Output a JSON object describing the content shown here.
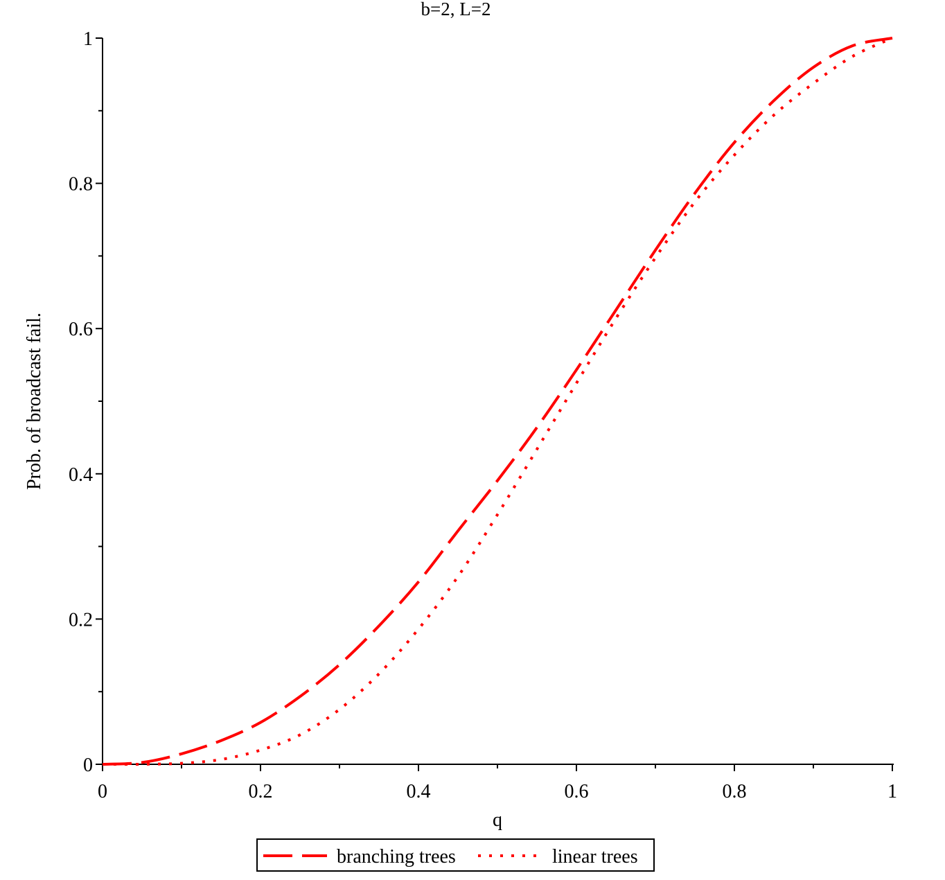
{
  "chart_data": {
    "type": "line",
    "title": "b=2, L=2",
    "xlabel": "q",
    "ylabel": "Prob. of broadcast fail.",
    "xlim": [
      0,
      1
    ],
    "ylim": [
      0,
      1
    ],
    "x_ticks": [
      "0",
      "0.2",
      "0.4",
      "0.6",
      "0.8",
      "1"
    ],
    "y_ticks": [
      "0",
      "0.2",
      "0.4",
      "0.6",
      "0.8",
      "1"
    ],
    "grid": false,
    "legend_position": "bottom-center",
    "x": [
      0,
      0.05,
      0.1,
      0.15,
      0.2,
      0.25,
      0.3,
      0.35,
      0.4,
      0.45,
      0.5,
      0.55,
      0.6,
      0.65,
      0.7,
      0.75,
      0.8,
      0.85,
      0.9,
      0.95,
      1
    ],
    "series": [
      {
        "name": "branching trees",
        "style": "dashed",
        "color": "#ff0000",
        "values": [
          0,
          0.0025,
          0.0144,
          0.0326,
          0.0576,
          0.0933,
          0.1372,
          0.1906,
          0.2512,
          0.3214,
          0.3906,
          0.4638,
          0.5432,
          0.6255,
          0.708,
          0.7864,
          0.8563,
          0.9139,
          0.9598,
          0.9896,
          1
        ]
      },
      {
        "name": "linear trees",
        "style": "dotted",
        "color": "#ff0000",
        "values": [
          0,
          0.0001,
          0.0013,
          0.0066,
          0.0195,
          0.0405,
          0.0756,
          0.1246,
          0.1862,
          0.2585,
          0.3438,
          0.4338,
          0.5248,
          0.614,
          0.6976,
          0.7744,
          0.839,
          0.894,
          0.9377,
          0.9751,
          1
        ]
      }
    ]
  }
}
